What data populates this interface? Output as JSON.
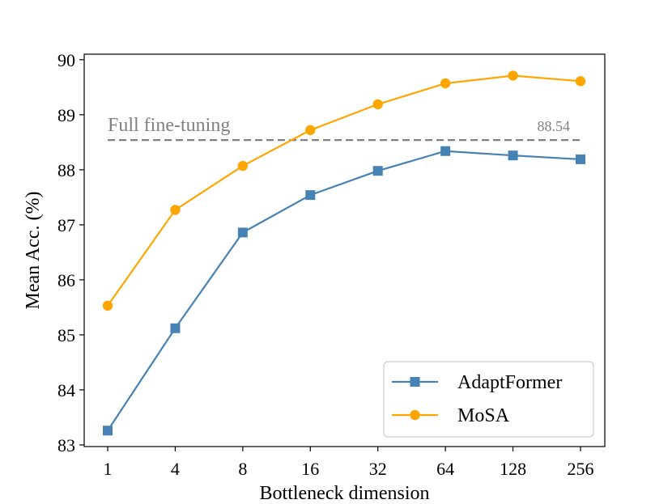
{
  "chart_data": {
    "type": "line",
    "title": "",
    "xlabel": "Bottleneck dimension",
    "ylabel": "Mean Acc. (%)",
    "categories": [
      "1",
      "4",
      "8",
      "16",
      "32",
      "64",
      "128",
      "256"
    ],
    "ylim": [
      82.97,
      90.1
    ],
    "yticks": [
      83,
      84,
      85,
      86,
      87,
      88,
      89,
      90
    ],
    "grid": false,
    "legend_position": "lower-right",
    "series": [
      {
        "name": "AdaptFormer",
        "marker": "square",
        "color": "#4682b4",
        "values": [
          83.26,
          85.12,
          86.86,
          87.54,
          87.98,
          88.34,
          88.26,
          88.19
        ]
      },
      {
        "name": "MoSA",
        "marker": "circle",
        "color": "#ffa500",
        "values": [
          85.53,
          87.27,
          88.07,
          88.72,
          89.19,
          89.57,
          89.71,
          89.61
        ]
      }
    ],
    "reference_line": {
      "label": "Full fine-tuning",
      "value": 88.54,
      "value_label": "88.54",
      "color": "#808080",
      "style": "dashed"
    }
  }
}
